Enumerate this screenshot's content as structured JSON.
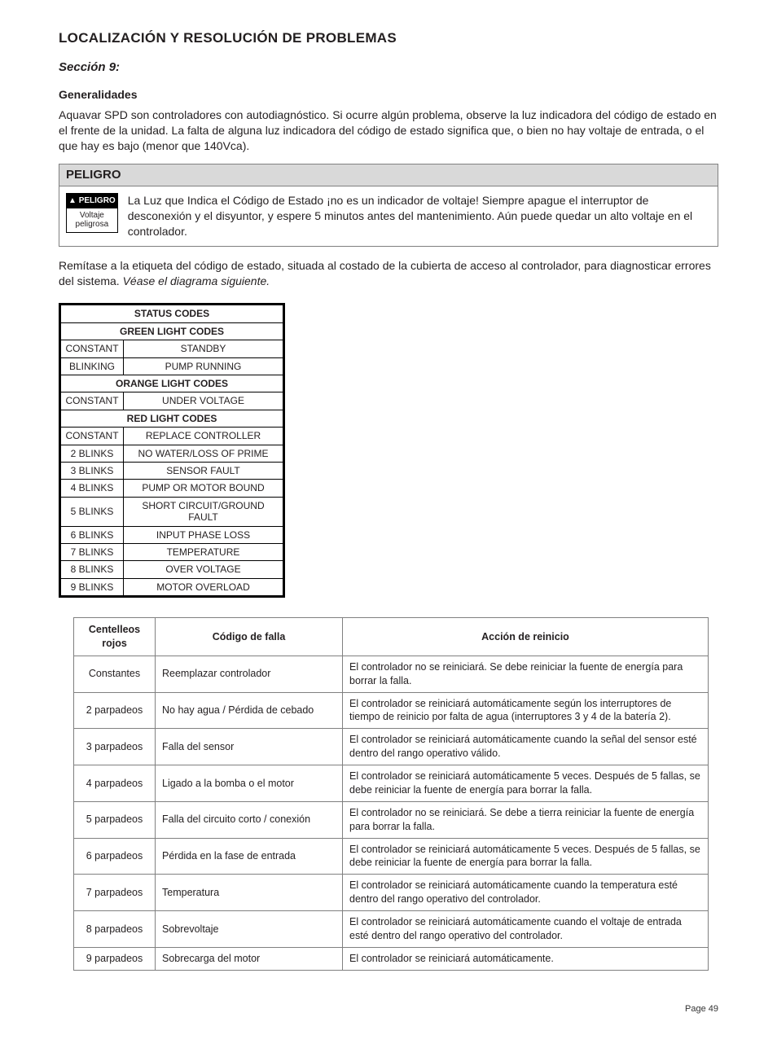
{
  "headings": {
    "h1": "LOCALIZACIÓN Y RESOLUCIÓN DE PROBLEMAS",
    "h2": "Sección 9:",
    "h3": "Generalidades"
  },
  "intro_para": "Aquavar SPD son controladores con autodiagnóstico. Si ocurre algún problema, observe la luz indicadora del código de estado en el frente de la unidad. La falta de alguna luz indicadora del código de estado significa que, o bien no hay voltaje de entrada, o el que hay es bajo (menor que 140Vca).",
  "danger": {
    "header": "PELIGRO",
    "badge_top": "PELIGRO",
    "badge_line1": "Voltaje",
    "badge_line2": "peligrosa",
    "text": "La Luz que Indica el Código de Estado ¡no es un indicador de voltaje! Siempre apague el interruptor de desconexión y el disyuntor, y espere 5 minutos antes del mantenimiento. Aún puede quedar un alto voltaje en el controlador."
  },
  "post_danger_plain": "Remítase a la etiqueta del código de estado, situada al costado de la cubierta de acceso al controlador, para diagnosticar errores del sistema. ",
  "post_danger_em": "Véase el diagrama siguiente.",
  "status": {
    "title": "STATUS CODES",
    "green_header": "GREEN LIGHT CODES",
    "orange_header": "ORANGE LIGHT CODES",
    "red_header": "RED LIGHT CODES",
    "green": [
      {
        "a": "CONSTANT",
        "b": "STANDBY"
      },
      {
        "a": "BLINKING",
        "b": "PUMP RUNNING"
      }
    ],
    "orange": [
      {
        "a": "CONSTANT",
        "b": "UNDER VOLTAGE"
      }
    ],
    "red": [
      {
        "a": "CONSTANT",
        "b": "REPLACE CONTROLLER"
      },
      {
        "a": "2 BLINKS",
        "b": "NO WATER/LOSS OF PRIME"
      },
      {
        "a": "3 BLINKS",
        "b": "SENSOR FAULT"
      },
      {
        "a": "4 BLINKS",
        "b": "PUMP OR MOTOR BOUND"
      },
      {
        "a": "5 BLINKS",
        "b": "SHORT CIRCUIT/GROUND FAULT"
      },
      {
        "a": "6 BLINKS",
        "b": "INPUT PHASE LOSS"
      },
      {
        "a": "7 BLINKS",
        "b": "TEMPERATURE"
      },
      {
        "a": "8 BLINKS",
        "b": "OVER VOLTAGE"
      },
      {
        "a": "9 BLINKS",
        "b": "MOTOR OVERLOAD"
      }
    ]
  },
  "fault": {
    "headers": {
      "blinks": "Centelleos rojos",
      "code": "Código de falla",
      "action": "Acción de reinicio"
    },
    "rows": [
      {
        "blinks": "Constantes",
        "code": "Reemplazar controlador",
        "action": "El controlador no se reiniciará. Se debe reiniciar la fuente de energía para borrar la falla."
      },
      {
        "blinks": "2 parpadeos",
        "code": "No hay agua / Pérdida de cebado",
        "action": "El controlador se reiniciará automáticamente según los interruptores de tiempo de reinicio por falta de agua (interruptores 3 y 4 de la batería 2)."
      },
      {
        "blinks": "3 parpadeos",
        "code": "Falla del sensor",
        "action": "El controlador se reiniciará automáticamente cuando la señal del sensor esté dentro del rango operativo válido."
      },
      {
        "blinks": "4 parpadeos",
        "code": "Ligado a la bomba o el motor",
        "action": "El controlador se reiniciará automáticamente 5 veces. Después de 5 fallas, se debe reiniciar la fuente de energía para borrar la falla."
      },
      {
        "blinks": "5 parpadeos",
        "code": "Falla del circuito corto / conexión",
        "action": "El controlador no se reiniciará. Se debe a tierra reiniciar la fuente de energía para borrar la falla."
      },
      {
        "blinks": "6 parpadeos",
        "code": "Pérdida en la fase de entrada",
        "action": "El controlador se reiniciará automáticamente 5 veces. Después de 5 fallas, se debe reiniciar la fuente de energía para borrar la falla."
      },
      {
        "blinks": "7 parpadeos",
        "code": "Temperatura",
        "action": "El controlador se reiniciará automáticamente cuando la temperatura esté dentro del rango operativo del controlador."
      },
      {
        "blinks": "8 parpadeos",
        "code": "Sobrevoltaje",
        "action": "El controlador se reiniciará automáticamente cuando el voltaje de entrada esté dentro del rango operativo del controlador."
      },
      {
        "blinks": "9 parpadeos",
        "code": "Sobrecarga del motor",
        "action": "El controlador se reiniciará automáticamente."
      }
    ]
  },
  "page_num": "Page 49"
}
